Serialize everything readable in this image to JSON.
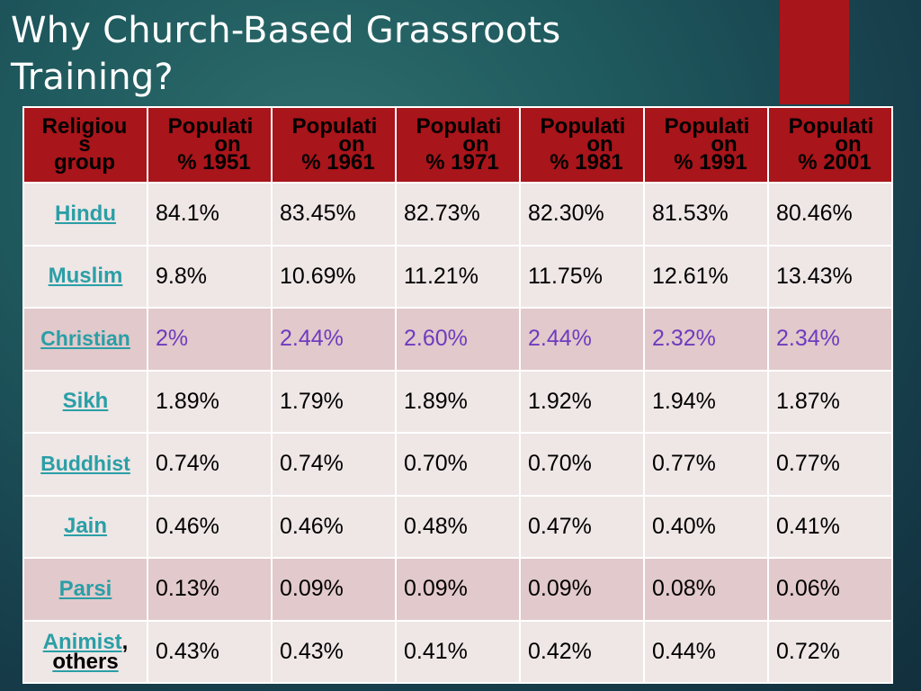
{
  "slide": {
    "title_line1": "Why Church-Based Grassroots",
    "title_line2": "Training?"
  },
  "table": {
    "header": {
      "group": {
        "l1": "Religiou",
        "l2": "s",
        "l3": "group"
      },
      "years": [
        {
          "l1": "Populati",
          "l2": "on",
          "l3": "% 1951"
        },
        {
          "l1": "Populati",
          "l2": "on",
          "l3": "% 1961"
        },
        {
          "l1": "Populati",
          "l2": "on",
          "l3": "% 1971"
        },
        {
          "l1": "Populati",
          "l2": "on",
          "l3": "% 1981"
        },
        {
          "l1": "Populati",
          "l2": "on",
          "l3": "% 1991"
        },
        {
          "l1": "Populati",
          "l2": "on",
          "l3": "% 2001"
        }
      ]
    },
    "rows": [
      {
        "group": "Hindu",
        "values": [
          "84.1%",
          "83.45%",
          "82.73%",
          "82.30%",
          "81.53%",
          "80.46%"
        ]
      },
      {
        "group": "Muslim",
        "values": [
          "9.8%",
          "10.69%",
          "11.21%",
          "11.75%",
          "12.61%",
          "13.43%"
        ]
      },
      {
        "group": "Christian",
        "values": [
          "2%",
          "2.44%",
          "2.60%",
          "2.44%",
          "2.32%",
          "2.34%"
        ]
      },
      {
        "group": "Sikh",
        "values": [
          "1.89%",
          "1.79%",
          "1.89%",
          "1.92%",
          "1.94%",
          "1.87%"
        ]
      },
      {
        "group": "Buddhist",
        "values": [
          "0.74%",
          "0.74%",
          "0.70%",
          "0.70%",
          "0.77%",
          "0.77%"
        ]
      },
      {
        "group": "Jain",
        "values": [
          "0.46%",
          "0.46%",
          "0.48%",
          "0.47%",
          "0.40%",
          "0.41%"
        ]
      },
      {
        "group": "Parsi",
        "values": [
          "0.13%",
          "0.09%",
          "0.09%",
          "0.09%",
          "0.08%",
          "0.06%"
        ]
      },
      {
        "group": "Animist",
        "group_suffix": ",",
        "group_line2": "others",
        "values": [
          "0.43%",
          "0.43%",
          "0.41%",
          "0.42%",
          "0.44%",
          "0.72%"
        ]
      }
    ]
  },
  "colors": {
    "accent": "#a8151a",
    "group_link": "#2a9fa6",
    "highlight_row_text": "#6f3bbf"
  }
}
